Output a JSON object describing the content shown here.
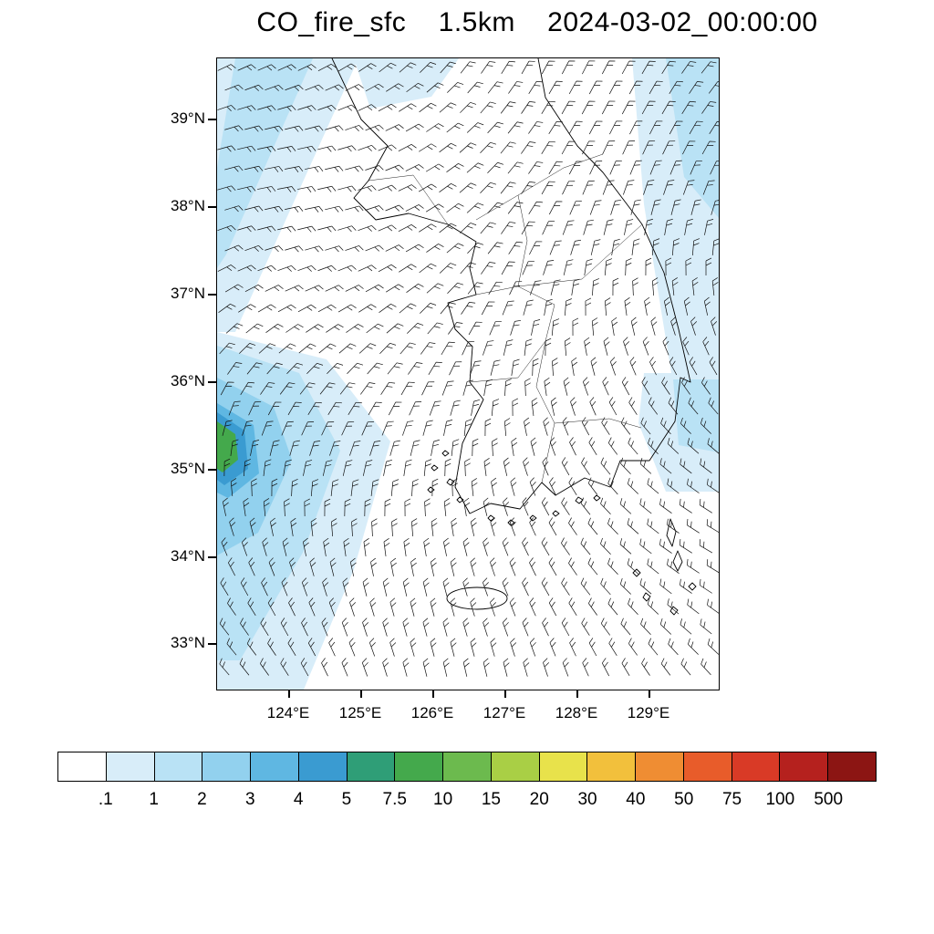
{
  "title": "CO_fire_sfc    1.5km    2024-03-02_00:00:00",
  "chart_data": {
    "type": "heatmap",
    "variable": "CO_fire_sfc",
    "level": "1.5km",
    "timestamp": "2024-03-02_00:00:00",
    "title": "CO_fire_sfc 1.5km 2024-03-02_00:00:00",
    "map_region": "Korean Peninsula and surrounding seas",
    "x_ticks": [
      "124°E",
      "125°E",
      "126°E",
      "127°E",
      "128°E",
      "129°E"
    ],
    "y_ticks": [
      "39°N",
      "38°N",
      "37°N",
      "36°N",
      "35°N",
      "34°N",
      "33°N"
    ],
    "lon_range": [
      123.0,
      130.0
    ],
    "lat_range": [
      32.5,
      39.7
    ],
    "grid": false,
    "overlays": [
      "wind-barbs",
      "coastline",
      "province-borders",
      "shaded-concentration"
    ],
    "colorbar": {
      "levels": [
        ".1",
        "1",
        "2",
        "3",
        "4",
        "5",
        "7.5",
        "10",
        "15",
        "20",
        "30",
        "40",
        "50",
        "75",
        "100",
        "500"
      ],
      "colors": [
        "#ffffff",
        "#d8edf9",
        "#b9e2f5",
        "#92d1ee",
        "#5fb7e2",
        "#3a9bd1",
        "#2f9e77",
        "#44a94c",
        "#6cba4e",
        "#a9cf45",
        "#e8e24b",
        "#f2c03c",
        "#ef8d33",
        "#e85c2a",
        "#d93a26",
        "#b5211e",
        "#8c1513"
      ],
      "orientation": "horizontal",
      "position": "bottom"
    },
    "shaded_regions": [
      {
        "area": "northwest diagonal band over Yellow Sea",
        "value_range": "1-3"
      },
      {
        "area": "west of peninsula near 35.4N 123.2E",
        "value_range": "3-7.5 local maximum (green core)"
      },
      {
        "area": "southwest band toward bottom-left",
        "value_range": "1-3"
      },
      {
        "area": "eastern band over Sea of Japan near 129-130E",
        "value_range": "1-2"
      }
    ]
  }
}
